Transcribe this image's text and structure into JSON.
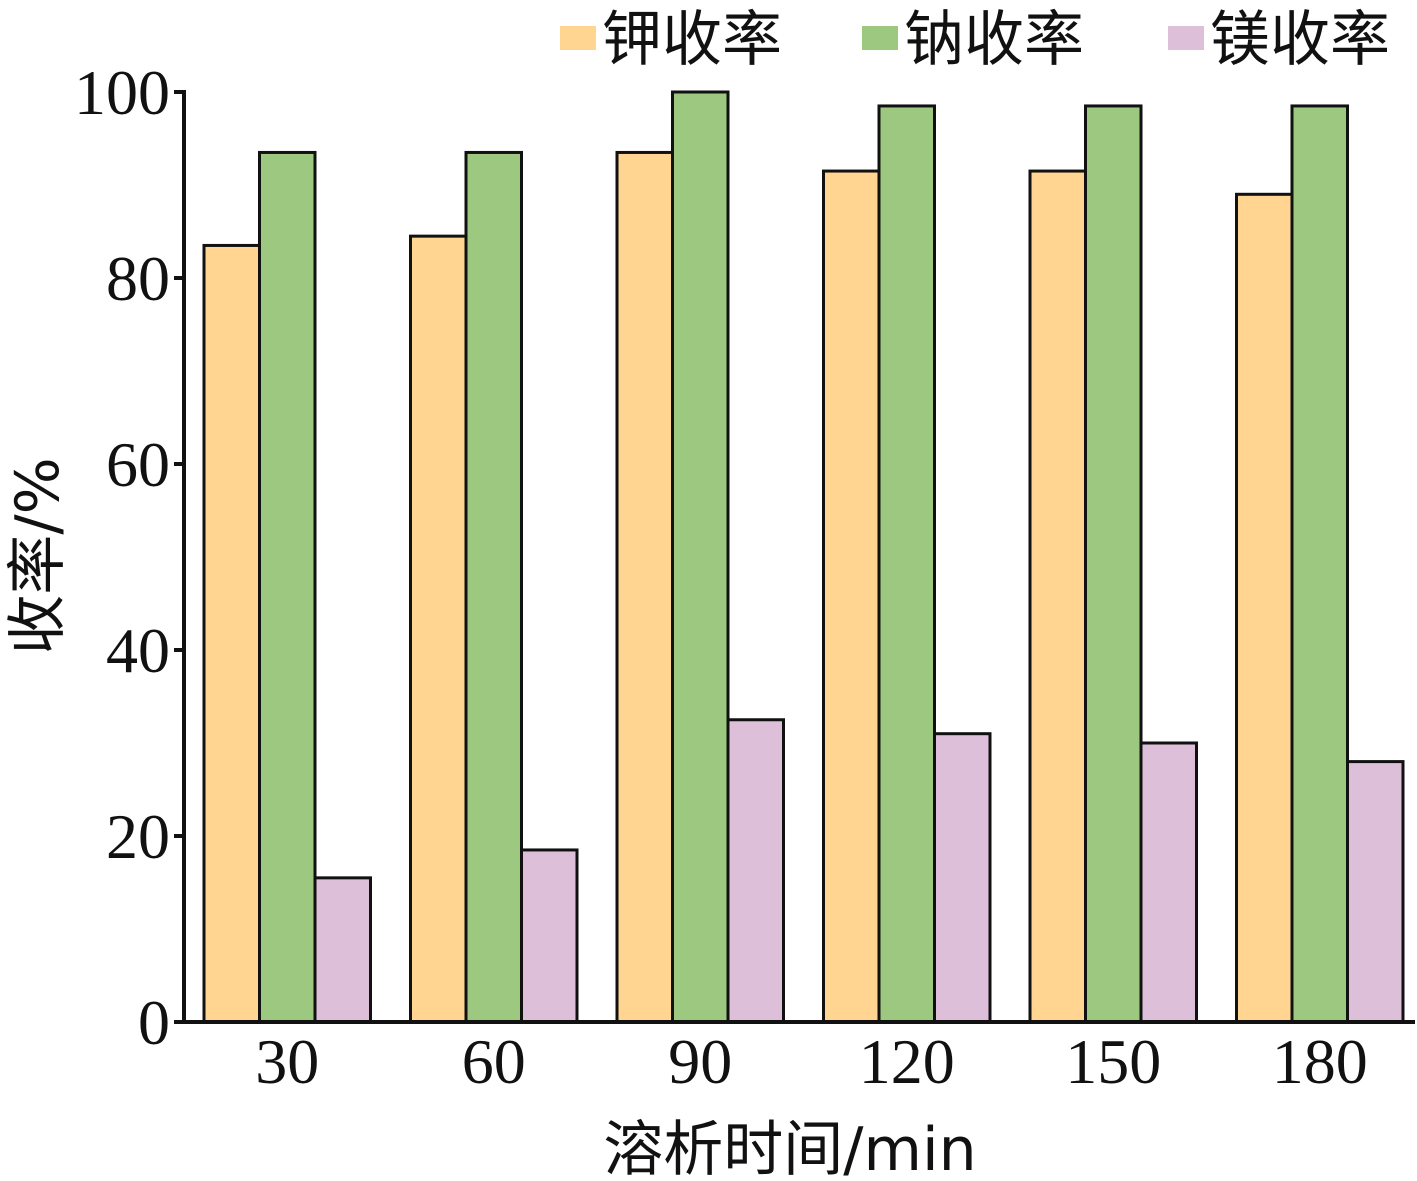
{
  "chart_data": {
    "type": "bar",
    "categories": [
      "30",
      "60",
      "90",
      "120",
      "150",
      "180"
    ],
    "series": [
      {
        "name": "钾收率",
        "color": "#FFD591",
        "values": [
          83.5,
          84.5,
          93.5,
          91.5,
          91.5,
          89
        ]
      },
      {
        "name": "钠收率",
        "color": "#9CC97F",
        "values": [
          93.5,
          93.5,
          100,
          98.5,
          98.5,
          98.5
        ]
      },
      {
        "name": "镁收率",
        "color": "#DDBFDA",
        "values": [
          15.5,
          18.5,
          32.5,
          31,
          30,
          28
        ]
      }
    ],
    "xlabel": "溶析时间/min",
    "ylabel": "收率/%",
    "ylim": [
      0,
      100
    ],
    "yticks": [
      "0",
      "20",
      "40",
      "60",
      "80",
      "100"
    ],
    "grid": false,
    "legend_position": "top-right"
  }
}
